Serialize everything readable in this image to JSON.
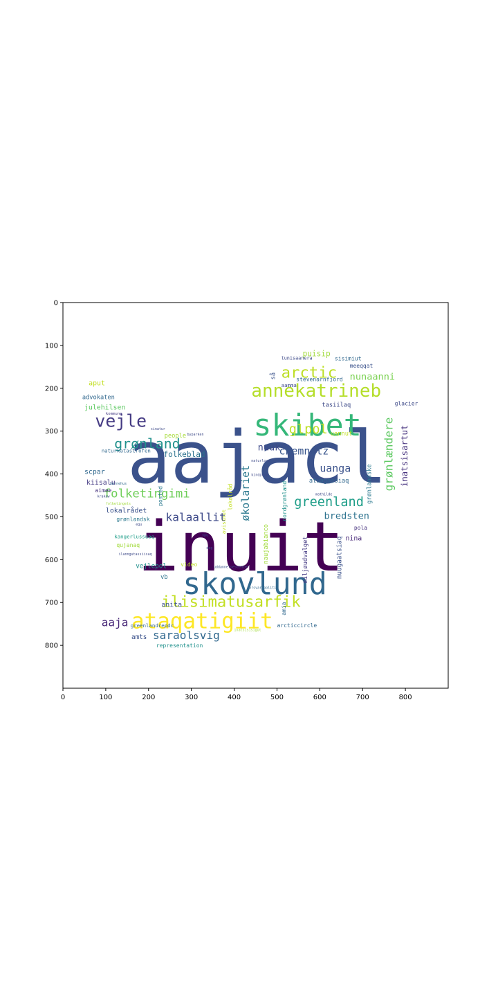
{
  "chart_data": {
    "type": "wordcloud",
    "title": "",
    "xlabel": "",
    "ylabel": "",
    "xlim": [
      0,
      900
    ],
    "ylim": [
      900,
      0
    ],
    "xticks": [
      0,
      100,
      200,
      300,
      400,
      500,
      600,
      700,
      800
    ],
    "yticks": [
      0,
      100,
      200,
      300,
      400,
      500,
      600,
      700,
      800
    ],
    "grid": false,
    "colormap": "viridis",
    "words": [
      {
        "text": "aajacl",
        "x": 150,
        "y": 420,
        "size": 168,
        "color": "#3b528b",
        "rot": 0
      },
      {
        "text": "inuit",
        "x": 175,
        "y": 625,
        "size": 160,
        "color": "#440154",
        "rot": 0
      },
      {
        "text": "skibet",
        "x": 445,
        "y": 310,
        "size": 70,
        "color": "#35b779",
        "rot": 0
      },
      {
        "text": "skovlund",
        "x": 280,
        "y": 680,
        "size": 70,
        "color": "#31688e",
        "rot": 0
      },
      {
        "text": "annekatrineb",
        "x": 440,
        "y": 220,
        "size": 42,
        "color": "#b5de2b",
        "rot": 0
      },
      {
        "text": "ataqatigiit",
        "x": 160,
        "y": 760,
        "size": 50,
        "color": "#fde725",
        "rot": 0
      },
      {
        "text": "ilisimatusarfik",
        "x": 230,
        "y": 710,
        "size": 36,
        "color": "#c2df23",
        "rot": 0
      },
      {
        "text": "vejle",
        "x": 75,
        "y": 290,
        "size": 40,
        "color": "#443a83",
        "rot": 0
      },
      {
        "text": "arctic",
        "x": 510,
        "y": 175,
        "size": 36,
        "color": "#bddf26",
        "rot": 0
      },
      {
        "text": "grønland",
        "x": 120,
        "y": 340,
        "size": 32,
        "color": "#21918c",
        "rot": 0
      },
      {
        "text": "glpol",
        "x": 528,
        "y": 305,
        "size": 30,
        "color": "#bddf26",
        "rot": 0
      },
      {
        "text": "greenland",
        "x": 540,
        "y": 475,
        "size": 30,
        "color": "#1f9e89",
        "rot": 0
      },
      {
        "text": "folketingimi",
        "x": 95,
        "y": 455,
        "size": 28,
        "color": "#6ece58",
        "rot": 0
      },
      {
        "text": "kalaallit",
        "x": 240,
        "y": 510,
        "size": 26,
        "color": "#3e4a89",
        "rot": 0
      },
      {
        "text": "chemnitz",
        "x": 505,
        "y": 355,
        "size": 24,
        "color": "#39568c",
        "rot": 0
      },
      {
        "text": "uanga",
        "x": 600,
        "y": 395,
        "size": 24,
        "color": "#3b528b",
        "rot": 0
      },
      {
        "text": "nunaanni",
        "x": 670,
        "y": 180,
        "size": 22,
        "color": "#7ad151",
        "rot": 0
      },
      {
        "text": "saraolsvig",
        "x": 210,
        "y": 785,
        "size": 26,
        "color": "#31688e",
        "rot": 0
      },
      {
        "text": "aaja",
        "x": 90,
        "y": 755,
        "size": 26,
        "color": "#482878",
        "rot": 0
      },
      {
        "text": "bredsten",
        "x": 610,
        "y": 505,
        "size": 22,
        "color": "#2c728e",
        "rot": 0
      },
      {
        "text": "nuuk",
        "x": 455,
        "y": 345,
        "size": 22,
        "color": "#3e4a89",
        "rot": 0
      },
      {
        "text": "økolariet",
        "x": 435,
        "y": 510,
        "size": 24,
        "color": "#2a788e",
        "rot": -90
      },
      {
        "text": "grønlændere",
        "x": 770,
        "y": 440,
        "size": 26,
        "color": "#5ec962",
        "rot": -90
      },
      {
        "text": "inatsisartut",
        "x": 805,
        "y": 430,
        "size": 20,
        "color": "#46327e",
        "rot": -90
      },
      {
        "text": "puisip",
        "x": 560,
        "y": 125,
        "size": 18,
        "color": "#a0da39",
        "rot": 0
      },
      {
        "text": "aput",
        "x": 60,
        "y": 193,
        "size": 16,
        "color": "#c2df23",
        "rot": 0
      },
      {
        "text": "advokaten",
        "x": 45,
        "y": 225,
        "size": 14,
        "color": "#31688e",
        "rot": 0
      },
      {
        "text": "julehilsen",
        "x": 50,
        "y": 250,
        "size": 16,
        "color": "#5ec962",
        "rot": 0
      },
      {
        "text": "folkeblad",
        "x": 235,
        "y": 360,
        "size": 18,
        "color": "#2c728e",
        "rot": 0
      },
      {
        "text": "people",
        "x": 237,
        "y": 315,
        "size": 14,
        "color": "#a5db36",
        "rot": 0
      },
      {
        "text": "naturkatastrofen",
        "x": 90,
        "y": 350,
        "size": 12,
        "color": "#31688e",
        "rot": 0
      },
      {
        "text": "scpar",
        "x": 50,
        "y": 400,
        "size": 16,
        "color": "#31688e",
        "rot": 0
      },
      {
        "text": "kiisalu",
        "x": 55,
        "y": 425,
        "size": 16,
        "color": "#443a83",
        "rot": 0
      },
      {
        "text": "aimee",
        "x": 75,
        "y": 443,
        "size": 13,
        "color": "#46327e",
        "rot": 0
      },
      {
        "text": "lokalrådet",
        "x": 100,
        "y": 490,
        "size": 16,
        "color": "#3b528b",
        "rot": 0
      },
      {
        "text": "grønlandsk",
        "x": 125,
        "y": 510,
        "size": 13,
        "color": "#2a788e",
        "rot": 0
      },
      {
        "text": "anita",
        "x": 230,
        "y": 710,
        "size": 16,
        "color": "#3b528b",
        "rot": 0
      },
      {
        "text": "vejlepol",
        "x": 170,
        "y": 620,
        "size": 15,
        "color": "#21918c",
        "rot": 0
      },
      {
        "text": "vb",
        "x": 228,
        "y": 645,
        "size": 14,
        "color": "#2c728e",
        "rot": 0
      },
      {
        "text": "video",
        "x": 275,
        "y": 616,
        "size": 13,
        "color": "#bddf26",
        "rot": 0
      },
      {
        "text": "qujanaq",
        "x": 125,
        "y": 570,
        "size": 13,
        "color": "#a0da39",
        "rot": 0
      },
      {
        "text": "kangerlussuaq",
        "x": 120,
        "y": 550,
        "size": 12,
        "color": "#1f9e89",
        "rot": 0
      },
      {
        "text": "amts",
        "x": 160,
        "y": 785,
        "size": 15,
        "color": "#3b528b",
        "rot": 0
      },
      {
        "text": "greenlandrepdc",
        "x": 158,
        "y": 758,
        "size": 12,
        "color": "#31688e",
        "rot": 0
      },
      {
        "text": "representation",
        "x": 218,
        "y": 805,
        "size": 13,
        "color": "#21918c",
        "rot": 0
      },
      {
        "text": "arcticcircle",
        "x": 500,
        "y": 758,
        "size": 13,
        "color": "#31688e",
        "rot": 0
      },
      {
        "text": "amia",
        "x": 520,
        "y": 730,
        "size": 13,
        "color": "#31688e",
        "rot": -90
      },
      {
        "text": "miljøudvalget",
        "x": 570,
        "y": 655,
        "size": 14,
        "color": "#443a83",
        "rot": -90
      },
      {
        "text": "nuugaatsiaq",
        "x": 650,
        "y": 645,
        "size": 15,
        "color": "#3b528b",
        "rot": -90
      },
      {
        "text": "naujabianco",
        "x": 478,
        "y": 610,
        "size": 14,
        "color": "#a0da39",
        "rot": -90
      },
      {
        "text": "nina",
        "x": 660,
        "y": 555,
        "size": 16,
        "color": "#482878",
        "rot": 0
      },
      {
        "text": "pola",
        "x": 680,
        "y": 530,
        "size": 13,
        "color": "#46327e",
        "rot": 0
      },
      {
        "text": "atuagassiaq",
        "x": 575,
        "y": 420,
        "size": 14,
        "color": "#31688e",
        "rot": 0
      },
      {
        "text": "nordgrønland",
        "x": 522,
        "y": 510,
        "size": 13,
        "color": "#21918c",
        "rot": -90
      },
      {
        "text": "grønlandske",
        "x": 720,
        "y": 470,
        "size": 14,
        "color": "#2a788e",
        "rot": -90
      },
      {
        "text": "tasiilaq",
        "x": 605,
        "y": 243,
        "size": 14,
        "color": "#3e4a89",
        "rot": 0
      },
      {
        "text": "uannut",
        "x": 625,
        "y": 310,
        "size": 14,
        "color": "#c2df23",
        "rot": 0
      },
      {
        "text": "glacier",
        "x": 775,
        "y": 240,
        "size": 13,
        "color": "#3e4a89",
        "rot": 0
      },
      {
        "text": "stevenarnfjord",
        "x": 545,
        "y": 183,
        "size": 13,
        "color": "#31688e",
        "rot": 0
      },
      {
        "text": "meeqqat",
        "x": 670,
        "y": 152,
        "size": 13,
        "color": "#3b528b",
        "rot": 0
      },
      {
        "text": "sisimiut",
        "x": 635,
        "y": 135,
        "size": 13,
        "color": "#31688e",
        "rot": 0
      },
      {
        "text": "tunisaanera",
        "x": 510,
        "y": 133,
        "size": 11,
        "color": "#3e4a89",
        "rot": 0
      },
      {
        "text": "aamma",
        "x": 510,
        "y": 197,
        "size": 12,
        "color": "#3e4a89",
        "rot": 0
      },
      {
        "text": "så",
        "x": 495,
        "y": 180,
        "size": 14,
        "color": "#3b528b",
        "rot": -90
      },
      {
        "text": "lokalråd",
        "x": 395,
        "y": 485,
        "size": 13,
        "color": "#c2df23",
        "rot": -90
      },
      {
        "text": "avisimut",
        "x": 380,
        "y": 540,
        "size": 12,
        "color": "#c2df23",
        "rot": -90
      },
      {
        "text": "posted",
        "x": 232,
        "y": 475,
        "size": 13,
        "color": "#2a788e",
        "rot": -90
      },
      {
        "text": "kommune",
        "x": 100,
        "y": 262,
        "size": 9,
        "color": "#443a83",
        "rot": 0
      },
      {
        "text": "folketingets",
        "x": 100,
        "y": 472,
        "size": 8,
        "color": "#a0da39",
        "rot": 0
      },
      {
        "text": "uddannelsescenter",
        "x": 352,
        "y": 620,
        "size": 8,
        "color": "#3b528b",
        "rot": 0
      },
      {
        "text": "forsvarspolitik",
        "x": 430,
        "y": 668,
        "size": 8,
        "color": "#31688e",
        "rot": 0
      },
      {
        "text": "inatsisisigut",
        "x": 400,
        "y": 767,
        "size": 8,
        "color": "#a0da39",
        "rot": 0
      },
      {
        "text": "naturlove",
        "x": 440,
        "y": 372,
        "size": 8,
        "color": "#3e4a89",
        "rot": 0
      },
      {
        "text": "kindprop",
        "x": 440,
        "y": 405,
        "size": 8,
        "color": "#3e4a89",
        "rot": 0
      },
      {
        "text": "byparken",
        "x": 290,
        "y": 310,
        "size": 8,
        "color": "#3e4a89",
        "rot": 0
      },
      {
        "text": "sinatur",
        "x": 205,
        "y": 297,
        "size": 8,
        "color": "#3e4a89",
        "rot": 0
      },
      {
        "text": "ilanngutassiisaq",
        "x": 130,
        "y": 590,
        "size": 8,
        "color": "#3e4a89",
        "rot": 0
      },
      {
        "text": "børnehus",
        "x": 110,
        "y": 425,
        "size": 8,
        "color": "#31688e",
        "rot": 0
      },
      {
        "text": "mathilde",
        "x": 590,
        "y": 450,
        "size": 8,
        "color": "#3e4a89",
        "rot": 0
      },
      {
        "text": "dog",
        "x": 335,
        "y": 575,
        "size": 8,
        "color": "#3e4a89",
        "rot": 0
      },
      {
        "text": "vpu",
        "x": 325,
        "y": 545,
        "size": 8,
        "color": "#3e4a89",
        "rot": 0
      },
      {
        "text": "egu",
        "x": 170,
        "y": 520,
        "size": 8,
        "color": "#3e4a89",
        "rot": 0
      },
      {
        "text": "krakow",
        "x": 80,
        "y": 455,
        "size": 8,
        "color": "#3e4a89",
        "rot": 0
      }
    ]
  }
}
